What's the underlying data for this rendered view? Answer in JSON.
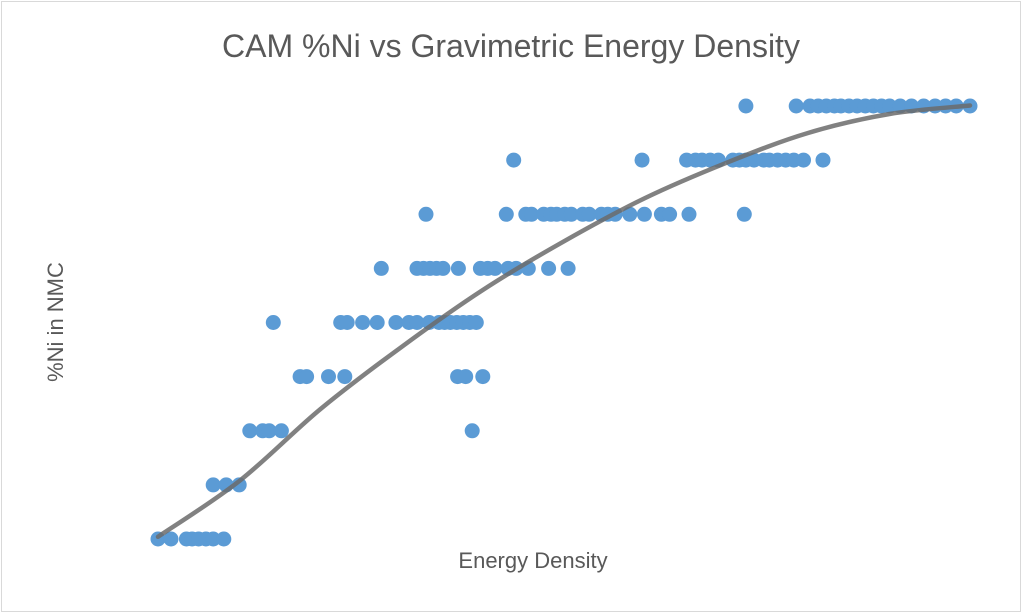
{
  "chart_data": {
    "type": "scatter",
    "title": "CAM %Ni vs Gravimetric Energy Density",
    "xlabel": "Energy Density",
    "ylabel": "%Ni in NMC",
    "xlim": [
      0,
      100
    ],
    "ylim": [
      0,
      8.5
    ],
    "grid": false,
    "legend": "none",
    "marker_color": "#5b9bd5",
    "trendline_color": "#6b6b6b",
    "trendline": {
      "type": "polynomial",
      "x": [
        0,
        10,
        20,
        30,
        40,
        50,
        60,
        70,
        80,
        90,
        100
      ],
      "y": [
        0.04,
        1.07,
        2.4,
        3.55,
        4.6,
        5.5,
        6.3,
        6.95,
        7.5,
        7.85,
        8.01
      ]
    },
    "points": [
      {
        "x": 0,
        "y": 0
      },
      {
        "x": 1.6,
        "y": 0
      },
      {
        "x": 3.5,
        "y": 0
      },
      {
        "x": 4.2,
        "y": 0
      },
      {
        "x": 5.0,
        "y": 0
      },
      {
        "x": 5.9,
        "y": 0
      },
      {
        "x": 6.8,
        "y": 0
      },
      {
        "x": 8.1,
        "y": 0
      },
      {
        "x": 6.8,
        "y": 1
      },
      {
        "x": 8.4,
        "y": 1
      },
      {
        "x": 10.0,
        "y": 1
      },
      {
        "x": 11.3,
        "y": 2
      },
      {
        "x": 12.9,
        "y": 2
      },
      {
        "x": 13.7,
        "y": 2
      },
      {
        "x": 15.2,
        "y": 2
      },
      {
        "x": 17.5,
        "y": 3
      },
      {
        "x": 18.3,
        "y": 3
      },
      {
        "x": 21.0,
        "y": 3
      },
      {
        "x": 23.0,
        "y": 3
      },
      {
        "x": 14.2,
        "y": 4
      },
      {
        "x": 22.5,
        "y": 4
      },
      {
        "x": 23.3,
        "y": 4
      },
      {
        "x": 25.2,
        "y": 4
      },
      {
        "x": 27.0,
        "y": 4
      },
      {
        "x": 29.3,
        "y": 4
      },
      {
        "x": 30.9,
        "y": 4
      },
      {
        "x": 31.9,
        "y": 4
      },
      {
        "x": 33.4,
        "y": 4
      },
      {
        "x": 34.6,
        "y": 4
      },
      {
        "x": 35.3,
        "y": 4
      },
      {
        "x": 36.0,
        "y": 4
      },
      {
        "x": 36.8,
        "y": 4
      },
      {
        "x": 37.6,
        "y": 4
      },
      {
        "x": 38.4,
        "y": 4
      },
      {
        "x": 39.2,
        "y": 4
      },
      {
        "x": 27.5,
        "y": 5
      },
      {
        "x": 31.9,
        "y": 5
      },
      {
        "x": 32.7,
        "y": 5
      },
      {
        "x": 33.5,
        "y": 5
      },
      {
        "x": 34.3,
        "y": 5
      },
      {
        "x": 35.1,
        "y": 5
      },
      {
        "x": 37.0,
        "y": 5
      },
      {
        "x": 39.7,
        "y": 5
      },
      {
        "x": 40.6,
        "y": 5
      },
      {
        "x": 41.5,
        "y": 5
      },
      {
        "x": 43.1,
        "y": 5
      },
      {
        "x": 44.1,
        "y": 5
      },
      {
        "x": 45.6,
        "y": 5
      },
      {
        "x": 48.1,
        "y": 5
      },
      {
        "x": 50.5,
        "y": 5
      },
      {
        "x": 33.0,
        "y": 6
      },
      {
        "x": 42.9,
        "y": 6
      },
      {
        "x": 45.3,
        "y": 6
      },
      {
        "x": 46.0,
        "y": 6
      },
      {
        "x": 47.5,
        "y": 6
      },
      {
        "x": 48.4,
        "y": 6
      },
      {
        "x": 49.1,
        "y": 6
      },
      {
        "x": 50.1,
        "y": 6
      },
      {
        "x": 50.9,
        "y": 6
      },
      {
        "x": 52.3,
        "y": 6
      },
      {
        "x": 53.1,
        "y": 6
      },
      {
        "x": 54.6,
        "y": 6
      },
      {
        "x": 55.4,
        "y": 6
      },
      {
        "x": 56.3,
        "y": 6
      },
      {
        "x": 58.1,
        "y": 6
      },
      {
        "x": 59.9,
        "y": 6
      },
      {
        "x": 62.0,
        "y": 6
      },
      {
        "x": 63.0,
        "y": 6
      },
      {
        "x": 65.4,
        "y": 6
      },
      {
        "x": 72.2,
        "y": 6
      },
      {
        "x": 43.8,
        "y": 7
      },
      {
        "x": 59.6,
        "y": 7
      },
      {
        "x": 65.1,
        "y": 7
      },
      {
        "x": 66.2,
        "y": 7
      },
      {
        "x": 67.0,
        "y": 7
      },
      {
        "x": 68.0,
        "y": 7
      },
      {
        "x": 69.0,
        "y": 7
      },
      {
        "x": 70.8,
        "y": 7
      },
      {
        "x": 71.6,
        "y": 7
      },
      {
        "x": 72.4,
        "y": 7
      },
      {
        "x": 73.4,
        "y": 7
      },
      {
        "x": 74.6,
        "y": 7
      },
      {
        "x": 75.3,
        "y": 7
      },
      {
        "x": 76.3,
        "y": 7
      },
      {
        "x": 77.3,
        "y": 7
      },
      {
        "x": 78.3,
        "y": 7
      },
      {
        "x": 79.5,
        "y": 7
      },
      {
        "x": 81.9,
        "y": 7
      },
      {
        "x": 72.4,
        "y": 8
      },
      {
        "x": 78.6,
        "y": 8
      },
      {
        "x": 80.3,
        "y": 8
      },
      {
        "x": 81.3,
        "y": 8
      },
      {
        "x": 82.3,
        "y": 8
      },
      {
        "x": 83.3,
        "y": 8
      },
      {
        "x": 84.1,
        "y": 8
      },
      {
        "x": 85.1,
        "y": 8
      },
      {
        "x": 86.1,
        "y": 8
      },
      {
        "x": 87.1,
        "y": 8
      },
      {
        "x": 88.1,
        "y": 8
      },
      {
        "x": 89.1,
        "y": 8
      },
      {
        "x": 90.1,
        "y": 8
      },
      {
        "x": 91.4,
        "y": 8
      },
      {
        "x": 92.8,
        "y": 8
      },
      {
        "x": 94.3,
        "y": 8
      },
      {
        "x": 95.7,
        "y": 8
      },
      {
        "x": 97.0,
        "y": 8
      },
      {
        "x": 98.3,
        "y": 8
      },
      {
        "x": 100,
        "y": 8
      }
    ],
    "outliers": [
      {
        "x": 36.9,
        "y": 3
      },
      {
        "x": 37.9,
        "y": 3
      },
      {
        "x": 40.0,
        "y": 3
      },
      {
        "x": 38.7,
        "y": 2
      }
    ]
  }
}
